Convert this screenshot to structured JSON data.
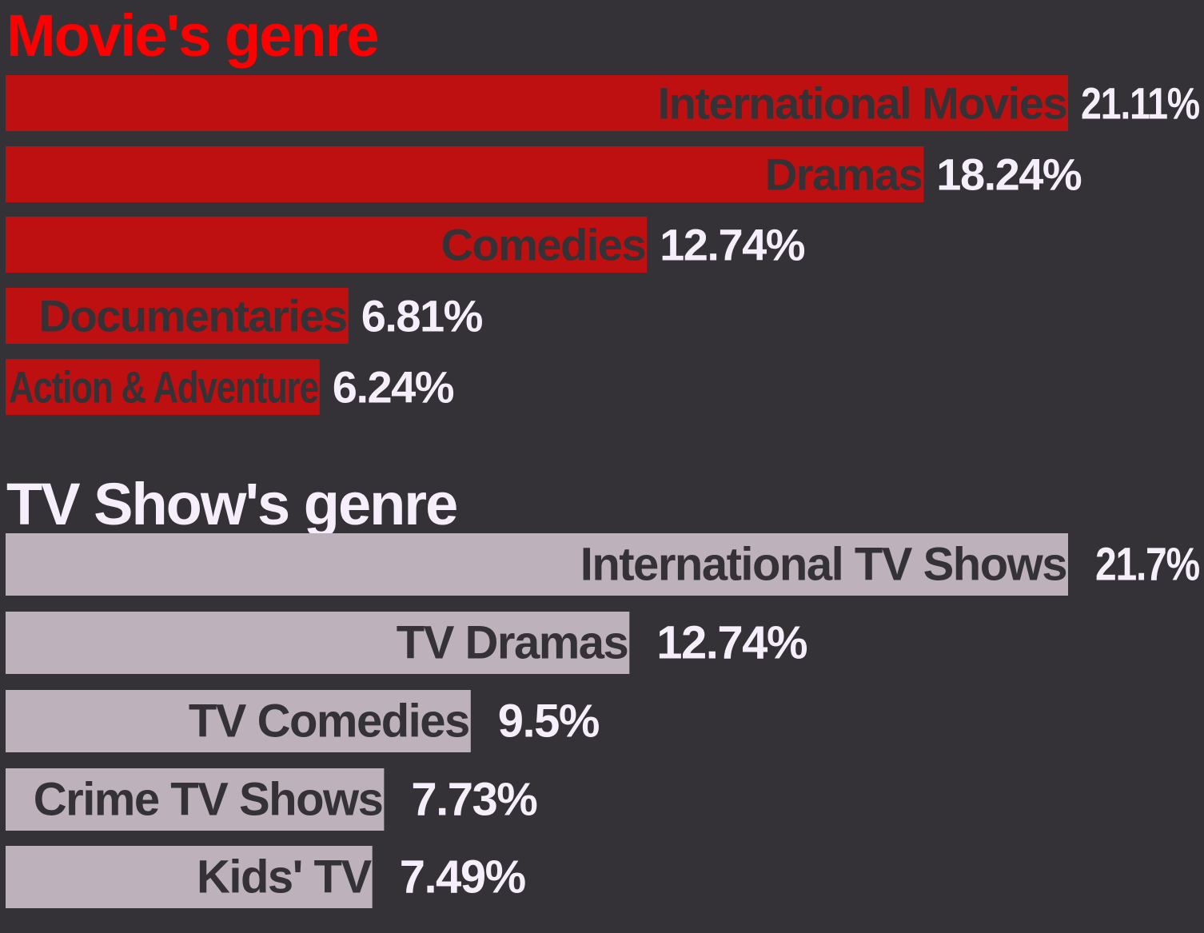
{
  "colors": {
    "background": "#343236",
    "movie_title": "#ff0000",
    "movie_bar": "#be1010",
    "tv_title": "#f6eefa",
    "tv_bar": "#bdb2bb",
    "bar_text": "#343236",
    "value_text": "#f6eefa"
  },
  "chart_data": [
    {
      "type": "bar",
      "orientation": "horizontal",
      "title": "Movie's genre",
      "categories": [
        "International Movies",
        "Dramas",
        "Comedies",
        "Documentaries",
        "Action & Adventure"
      ],
      "values": [
        21.11,
        18.24,
        12.74,
        6.81,
        6.24
      ],
      "value_labels": [
        "21.11%",
        "18.24%",
        "12.74%",
        "6.81%",
        "6.24%"
      ],
      "unit": "%",
      "xlim": [
        0,
        21.11
      ],
      "grid": false,
      "legend": "none"
    },
    {
      "type": "bar",
      "orientation": "horizontal",
      "title": "TV Show's genre",
      "categories": [
        "International TV Shows",
        "TV Dramas",
        "TV Comedies",
        "Crime TV Shows",
        "Kids' TV"
      ],
      "values": [
        21.7,
        12.74,
        9.5,
        7.73,
        7.49
      ],
      "value_labels": [
        "21.7%",
        "12.74%",
        "9.5%",
        "7.73%",
        "7.49%"
      ],
      "unit": "%",
      "xlim": [
        0,
        21.7
      ],
      "grid": false,
      "legend": "none"
    }
  ]
}
